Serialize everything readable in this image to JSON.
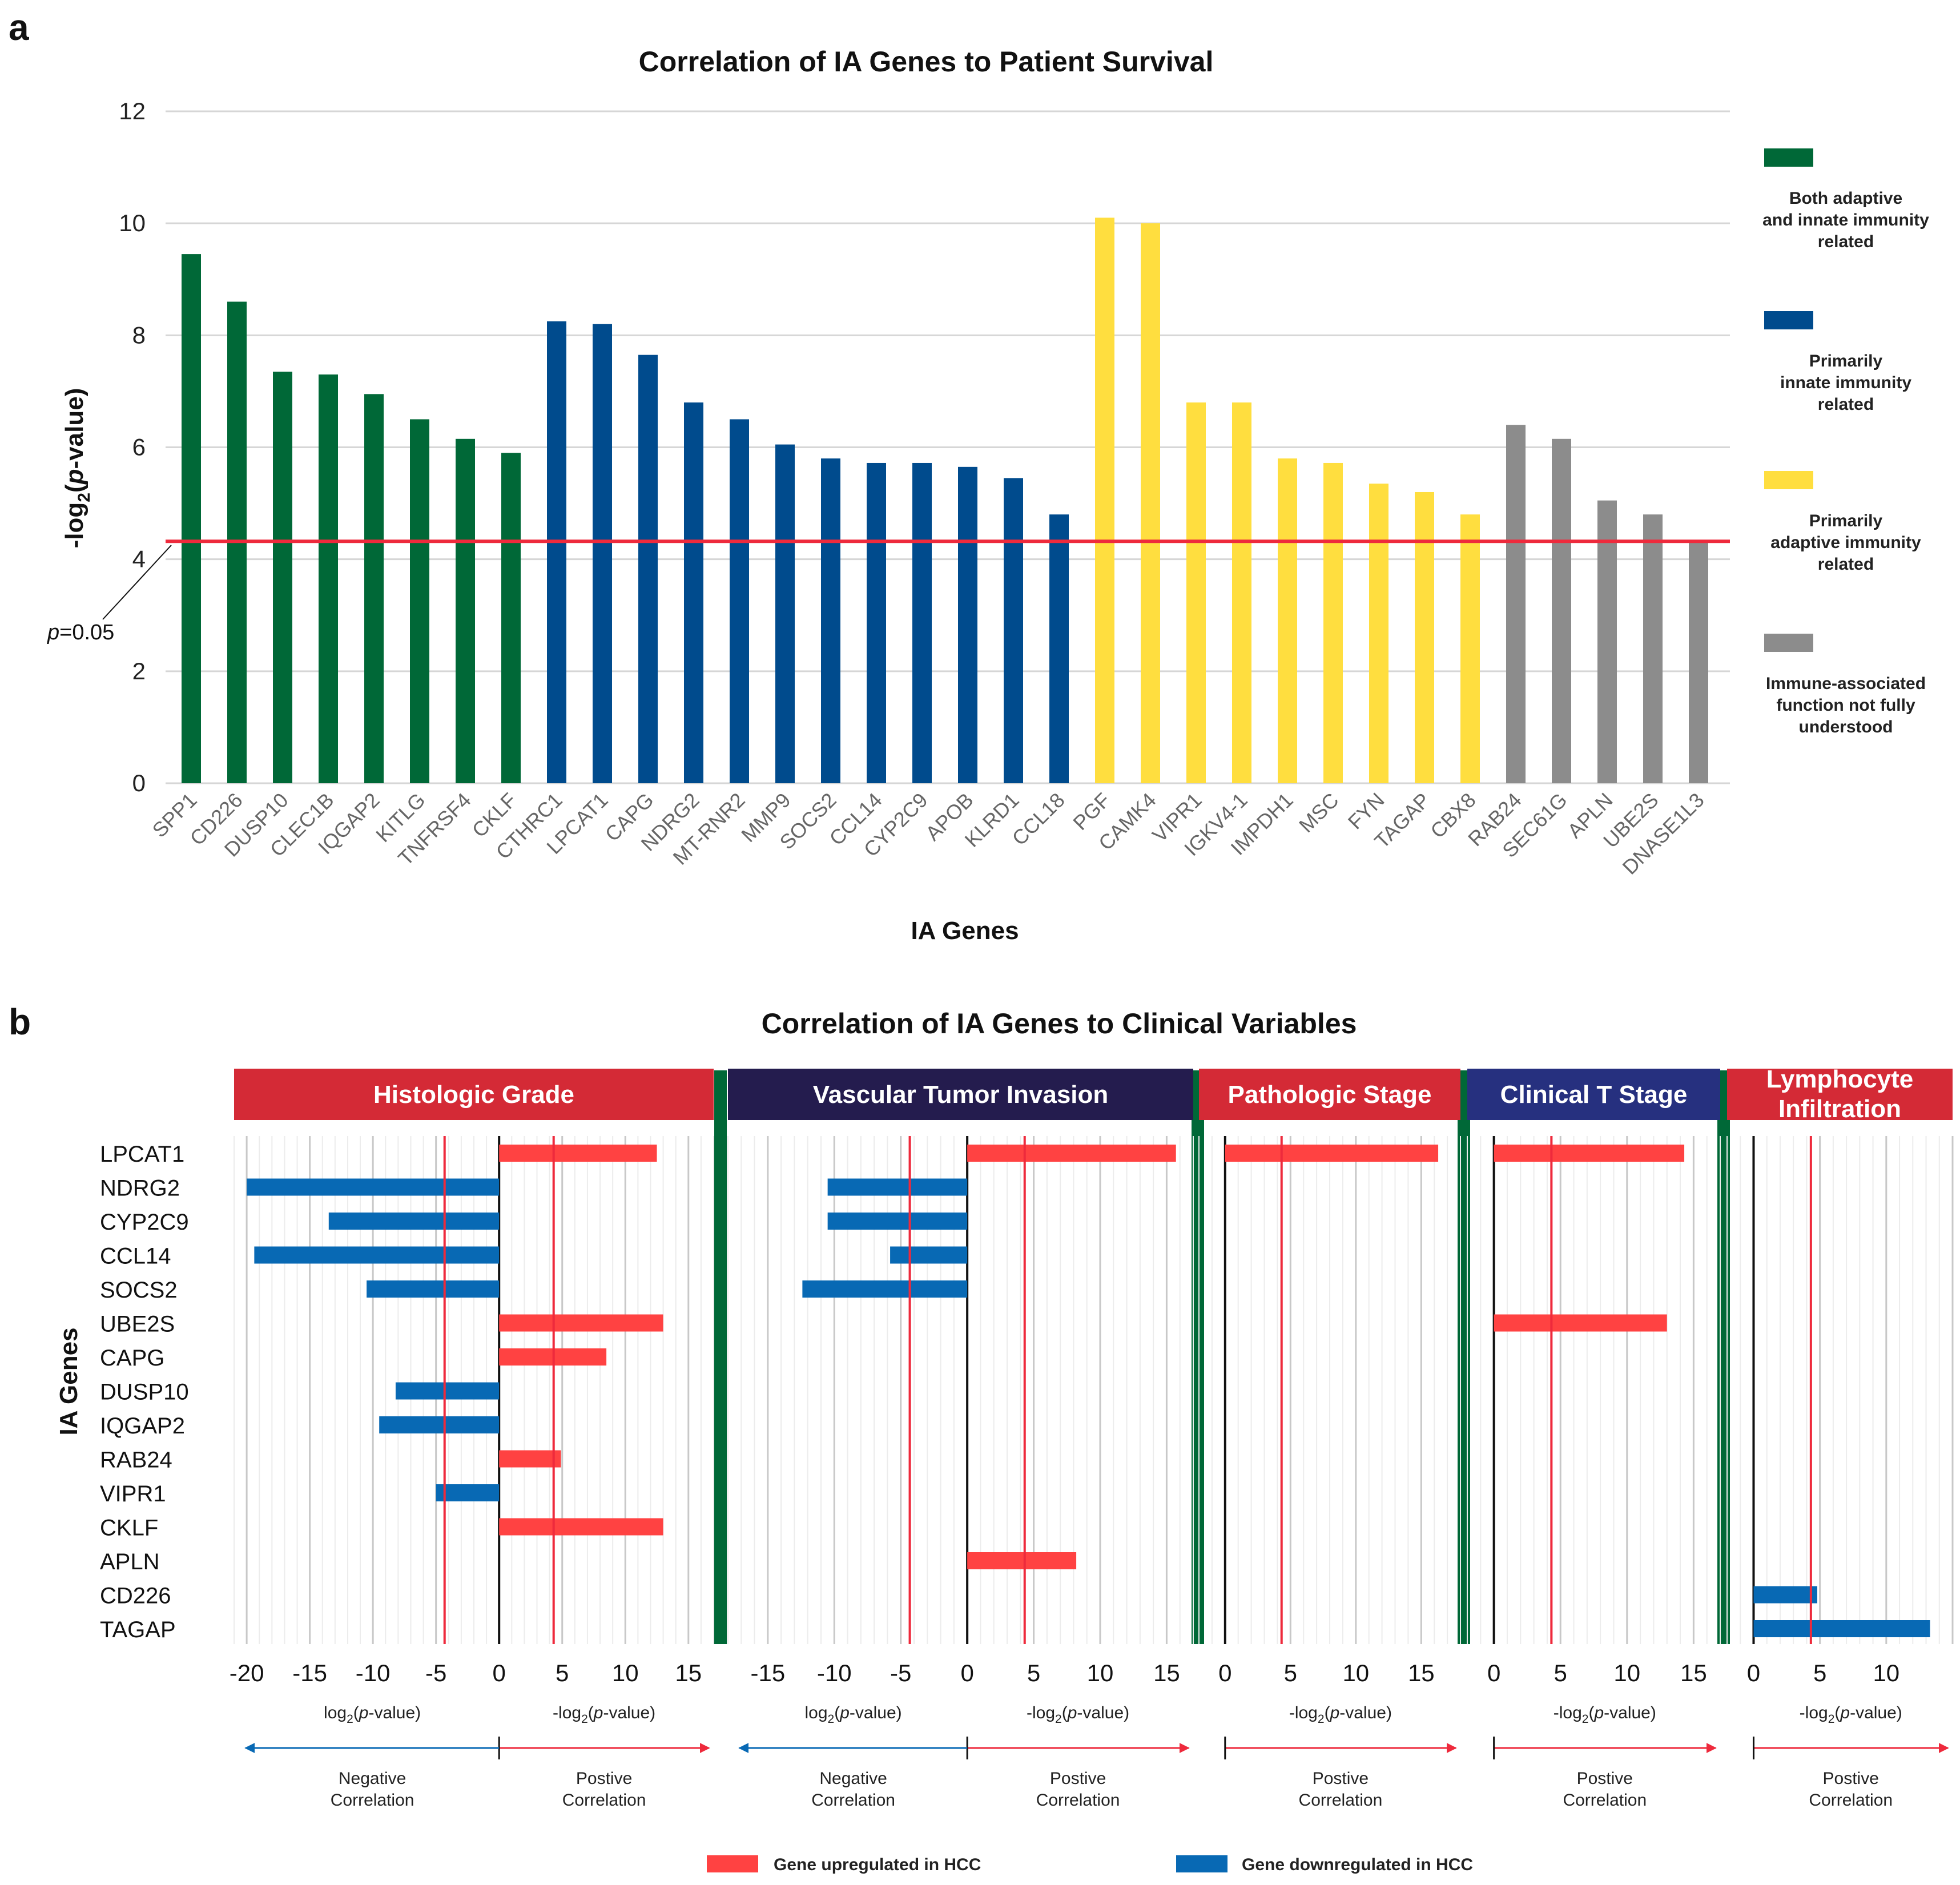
{
  "colors": {
    "green": "#006837",
    "blue": "#004b8d",
    "yellow": "#ffde3f",
    "gray": "#8c8c8c",
    "red_line": "#ee2a3c",
    "up": "#ff4242",
    "down": "#0869b4",
    "header_red": "#d42a36",
    "header_navy": "#241c4e",
    "header_blue": "#26307f",
    "divider_green": "#006837",
    "grid": "#d6d6d6",
    "axis_text": "#222222"
  },
  "panel_a": {
    "label": "a",
    "threshold_label_p": "p",
    "threshold_label_value": "=0.05",
    "ylabel_prefix": "-log",
    "ylabel_sub": "2",
    "ylabel_open": "(",
    "ylabel_italic": "p",
    "ylabel_suffix": "-value)",
    "chart_data": {
      "type": "bar",
      "title": "Correlation of IA Genes to Patient Survival",
      "xlabel": "IA Genes",
      "ylabel": "-log2(p-value)",
      "ylim": [
        0,
        12
      ],
      "yticks": [
        0,
        2,
        4,
        6,
        8,
        10,
        12
      ],
      "threshold": 4.32,
      "categories": [
        "SPP1",
        "CD226",
        "DUSP10",
        "CLEC1B",
        "IQGAP2",
        "KITLG",
        "TNFRSF4",
        "CKLF",
        "CTHRC1",
        "LPCAT1",
        "CAPG",
        "NDRG2",
        "MT-RNR2",
        "MMP9",
        "SOCS2",
        "CCL14",
        "CYP2C9",
        "APOB",
        "KLRD1",
        "CCL18",
        "PGF",
        "CAMK4",
        "VIPR1",
        "IGKV4-1",
        "IMPDH1",
        "MSC",
        "FYN",
        "TAGAP",
        "CBX8",
        "RAB24",
        "SEC61G",
        "APLN",
        "UBE2S",
        "DNASE1L3"
      ],
      "values": [
        9.45,
        8.6,
        7.35,
        7.3,
        6.95,
        6.5,
        6.15,
        5.9,
        8.25,
        8.2,
        7.65,
        6.8,
        6.5,
        6.05,
        5.8,
        5.72,
        5.72,
        5.65,
        5.45,
        4.8,
        10.1,
        10.0,
        6.8,
        6.8,
        5.8,
        5.72,
        5.35,
        5.2,
        4.8,
        6.4,
        6.15,
        5.05,
        4.8,
        4.3
      ],
      "groups": [
        "green",
        "green",
        "green",
        "green",
        "green",
        "green",
        "green",
        "green",
        "blue",
        "blue",
        "blue",
        "blue",
        "blue",
        "blue",
        "blue",
        "blue",
        "blue",
        "blue",
        "blue",
        "blue",
        "yellow",
        "yellow",
        "yellow",
        "yellow",
        "yellow",
        "yellow",
        "yellow",
        "yellow",
        "yellow",
        "gray",
        "gray",
        "gray",
        "gray",
        "gray"
      ],
      "legend": [
        {
          "key": "green",
          "lines": [
            "Both adaptive",
            "and innate immunity",
            "related"
          ]
        },
        {
          "key": "blue",
          "lines": [
            "Primarily",
            "innate immunity",
            "related"
          ]
        },
        {
          "key": "yellow",
          "lines": [
            "Primarily",
            "adaptive immunity",
            "related"
          ]
        },
        {
          "key": "gray",
          "lines": [
            "Immune-associated",
            "function not fully",
            "understood"
          ]
        }
      ]
    }
  },
  "panel_b": {
    "label": "b",
    "chart_data": {
      "type": "bar",
      "title": "Correlation of IA Genes to Clinical Variables",
      "ylabel": "IA Genes",
      "genes": [
        "LPCAT1",
        "NDRG2",
        "CYP2C9",
        "CCL14",
        "SOCS2",
        "UBE2S",
        "CAPG",
        "DUSP10",
        "IQGAP2",
        "RAB24",
        "VIPR1",
        "CKLF",
        "APLN",
        "CD226",
        "TAGAP"
      ],
      "threshold": 4.32,
      "panels": [
        {
          "title": "Histologic Grade",
          "header": "header_red",
          "xlim": [
            -21,
            17
          ],
          "ticks": [
            -20,
            -15,
            -10,
            -5,
            0,
            5,
            10,
            15
          ],
          "neg_label": [
            "log",
            "2",
            "(",
            "p",
            "-value)"
          ],
          "pos_label": [
            "-log",
            "2",
            "(",
            "p",
            "-value)"
          ],
          "neg_arrow": [
            "Negative",
            "Correlation"
          ],
          "pos_arrow": [
            "Postive",
            "Correlation"
          ],
          "bars": [
            {
              "gene": "LPCAT1",
              "value": 12.5,
              "dir": "up"
            },
            {
              "gene": "NDRG2",
              "value": -20,
              "dir": "down"
            },
            {
              "gene": "CYP2C9",
              "value": -13.5,
              "dir": "down"
            },
            {
              "gene": "CCL14",
              "value": -19.4,
              "dir": "down"
            },
            {
              "gene": "SOCS2",
              "value": -10.5,
              "dir": "down"
            },
            {
              "gene": "UBE2S",
              "value": 13,
              "dir": "up"
            },
            {
              "gene": "CAPG",
              "value": 8.5,
              "dir": "up"
            },
            {
              "gene": "DUSP10",
              "value": -8.2,
              "dir": "down"
            },
            {
              "gene": "IQGAP2",
              "value": -9.5,
              "dir": "down"
            },
            {
              "gene": "RAB24",
              "value": 4.9,
              "dir": "up"
            },
            {
              "gene": "VIPR1",
              "value": -5,
              "dir": "down"
            },
            {
              "gene": "CKLF",
              "value": 13,
              "dir": "up"
            }
          ]
        },
        {
          "title": "Vascular Tumor Invasion",
          "header": "header_navy",
          "xlim": [
            -18,
            17
          ],
          "ticks": [
            -15,
            -10,
            -5,
            0,
            5,
            10,
            15
          ],
          "neg_label": [
            "log",
            "2",
            "(",
            "p",
            "-value)"
          ],
          "pos_label": [
            "-log",
            "2",
            "(",
            "p",
            "-value)"
          ],
          "neg_arrow": [
            "Negative",
            "Correlation"
          ],
          "pos_arrow": [
            "Postive",
            "Correlation"
          ],
          "bars": [
            {
              "gene": "LPCAT1",
              "value": 15.7,
              "dir": "up"
            },
            {
              "gene": "NDRG2",
              "value": -10.5,
              "dir": "down"
            },
            {
              "gene": "CYP2C9",
              "value": -10.5,
              "dir": "down"
            },
            {
              "gene": "CCL14",
              "value": -5.8,
              "dir": "down"
            },
            {
              "gene": "SOCS2",
              "value": -12.4,
              "dir": "down"
            },
            {
              "gene": "APLN",
              "value": 8.2,
              "dir": "up"
            }
          ]
        },
        {
          "title": "Pathologic Stage",
          "header": "header_red",
          "xlim": [
            -2,
            18
          ],
          "ticks": [
            0,
            5,
            10,
            15
          ],
          "pos_label": [
            "-log",
            "2",
            "(",
            "p",
            "-value)"
          ],
          "pos_arrow": [
            "Postive",
            "Correlation"
          ],
          "bars": [
            {
              "gene": "LPCAT1",
              "value": 16.3,
              "dir": "up"
            }
          ]
        },
        {
          "title": "Clinical T Stage",
          "header": "header_blue",
          "xlim": [
            -2,
            17
          ],
          "ticks": [
            0,
            5,
            10,
            15
          ],
          "pos_label": [
            "-log",
            "2",
            "(",
            "p",
            "-value)"
          ],
          "pos_arrow": [
            "Postive",
            "Correlation"
          ],
          "bars": [
            {
              "gene": "LPCAT1",
              "value": 14.3,
              "dir": "up"
            },
            {
              "gene": "UBE2S",
              "value": 13,
              "dir": "up"
            }
          ]
        },
        {
          "title_lines": [
            "Lymphocyte",
            "Infiltration"
          ],
          "header": "header_red",
          "xlim": [
            -2,
            15
          ],
          "ticks": [
            0,
            5,
            10
          ],
          "pos_label": [
            "-log",
            "2",
            "(",
            "p",
            "-value)"
          ],
          "pos_arrow": [
            "Postive",
            "Correlation"
          ],
          "bars": [
            {
              "gene": "CD226",
              "value": 4.8,
              "dir": "down"
            },
            {
              "gene": "TAGAP",
              "value": 13.3,
              "dir": "down"
            }
          ]
        }
      ],
      "legend": [
        {
          "key": "up",
          "label": "Gene upregulated in HCC"
        },
        {
          "key": "down",
          "label": "Gene downregulated in HCC"
        }
      ]
    }
  }
}
